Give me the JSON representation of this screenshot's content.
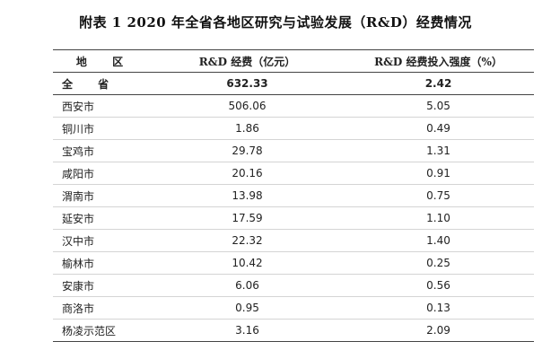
{
  "title": "附表 1   2020 年全省各地区研究与试验发展（R&D）经费情况",
  "table": {
    "headers": [
      "地  区",
      "R&D 经费（亿元）",
      "R&D 经费投入强度（%）"
    ],
    "rows": [
      {
        "region": "全  省",
        "funding": "632.33",
        "intensity": "2.42"
      },
      {
        "region": "西安市",
        "funding": "506.06",
        "intensity": "5.05"
      },
      {
        "region": "铜川市",
        "funding": "1.86",
        "intensity": "0.49"
      },
      {
        "region": "宝鸡市",
        "funding": "29.78",
        "intensity": "1.31"
      },
      {
        "region": "咸阳市",
        "funding": "20.16",
        "intensity": "0.91"
      },
      {
        "region": "渭南市",
        "funding": "13.98",
        "intensity": "0.75"
      },
      {
        "region": "延安市",
        "funding": "17.59",
        "intensity": "1.10"
      },
      {
        "region": "汉中市",
        "funding": "22.32",
        "intensity": "1.40"
      },
      {
        "region": "榆林市",
        "funding": "10.42",
        "intensity": "0.25"
      },
      {
        "region": "安康市",
        "funding": "6.06",
        "intensity": "0.56"
      },
      {
        "region": "商洛市",
        "funding": "0.95",
        "intensity": "0.13"
      },
      {
        "region": "杨凌示范区",
        "funding": "3.16",
        "intensity": "2.09"
      }
    ]
  }
}
